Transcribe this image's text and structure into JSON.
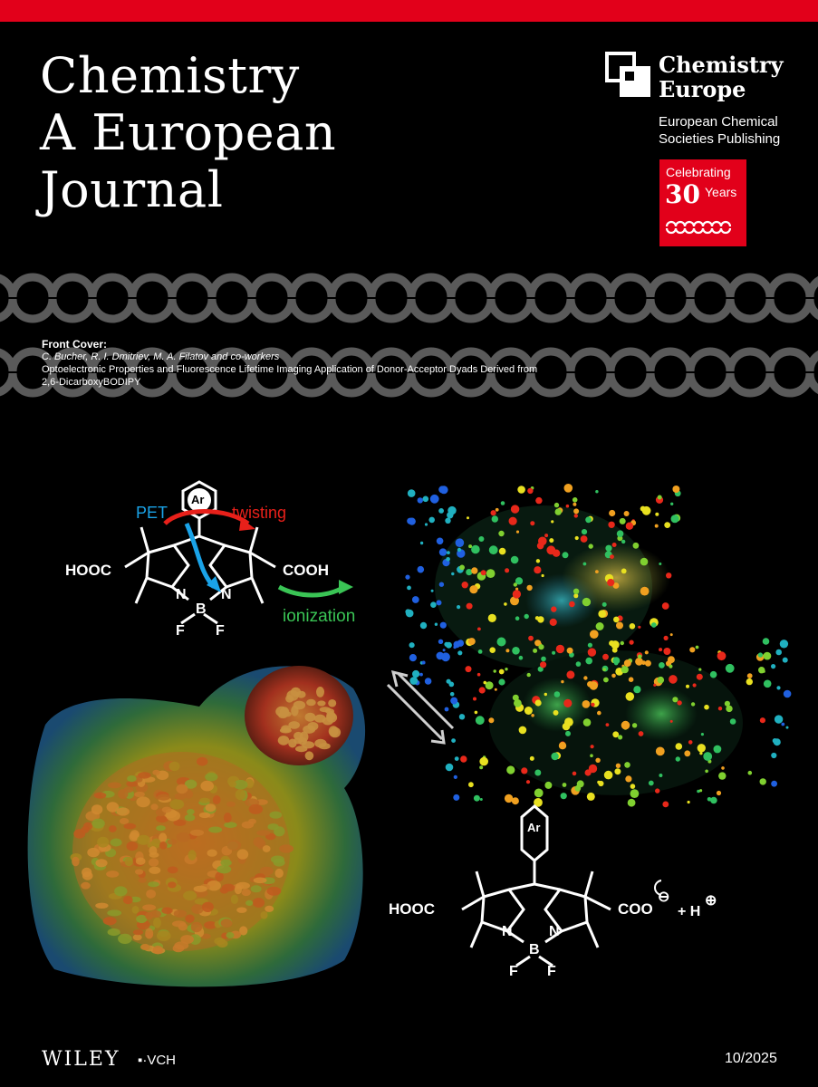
{
  "journal": {
    "title_lines": [
      "Chemistry",
      "A European",
      "Journal"
    ]
  },
  "publisher": {
    "name_lines": [
      "Chemistry",
      "Europe"
    ],
    "subtitle_lines": [
      "European Chemical",
      "Societies Publishing"
    ],
    "badge": {
      "line1": "Celebrating",
      "number": "30",
      "unit": "Years"
    }
  },
  "front_cover": {
    "heading": "Front Cover:",
    "authors": "C. Bucher, R. I. Dmitriev, M. A. Filatov and co-workers",
    "title_line1": "Optoelectronic Properties and Fluorescence Lifetime Imaging Application of Donor-Acceptor Dyads Derived from",
    "title_line2": "2,6-DicarboxyBODIPY"
  },
  "scheme_top": {
    "ar": "Ar",
    "pet": "PET",
    "twisting": "twisting",
    "hooc": "HOOC",
    "cooh": "COOH",
    "n_left": "N",
    "n_right": "N",
    "b": "B",
    "f_left": "F",
    "f_right": "F",
    "ionization": "ionization"
  },
  "scheme_bottom": {
    "ar": "Ar",
    "hooc": "HOOC",
    "coo": "COO",
    "h": "+ H",
    "n_left": "N",
    "n_right": "N",
    "b": "B",
    "f_left": "F",
    "f_right": "F"
  },
  "footer": {
    "wiley": "WILEY",
    "vch": "VCH",
    "issue": "10/2025"
  },
  "colors": {
    "brand_red": "#e2001a",
    "pet_blue": "#1aa3e8",
    "twisting_red": "#e8201a",
    "ionization_green": "#3ac455"
  }
}
